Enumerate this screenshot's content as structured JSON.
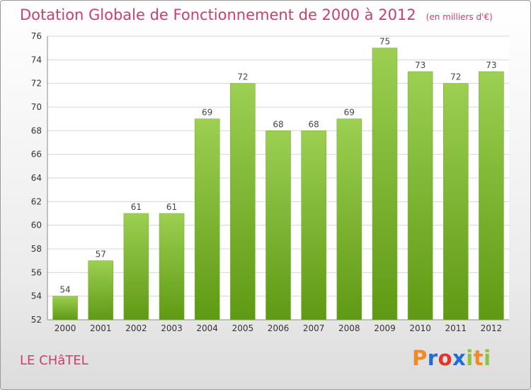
{
  "title": "Dotation Globale de Fonctionnement de 2000 à 2012",
  "unit": "(en milliers d'€)",
  "commune": "LE CHâTEL",
  "logo_text": "Proxiti",
  "colors": {
    "title": "#c8416c",
    "bar_top": "#9ccf52",
    "bar_bottom": "#5f9a14",
    "logo_letters": [
      "#f08a24",
      "#1f6fd1",
      "#e3342f",
      "#1f6fd1",
      "#8fc13b",
      "#f08a24",
      "#8fc13b"
    ]
  },
  "chart_data": {
    "type": "bar",
    "categories": [
      "2000",
      "2001",
      "2002",
      "2003",
      "2004",
      "2005",
      "2006",
      "2007",
      "2008",
      "2009",
      "2010",
      "2011",
      "2012"
    ],
    "values": [
      54,
      57,
      61,
      61,
      69,
      72,
      68,
      68,
      69,
      75,
      73,
      72,
      73
    ],
    "ylim": [
      52,
      76
    ],
    "yticks": [
      52,
      54,
      56,
      58,
      60,
      62,
      64,
      66,
      68,
      70,
      72,
      74,
      76
    ],
    "grid": true,
    "legend": "none"
  }
}
